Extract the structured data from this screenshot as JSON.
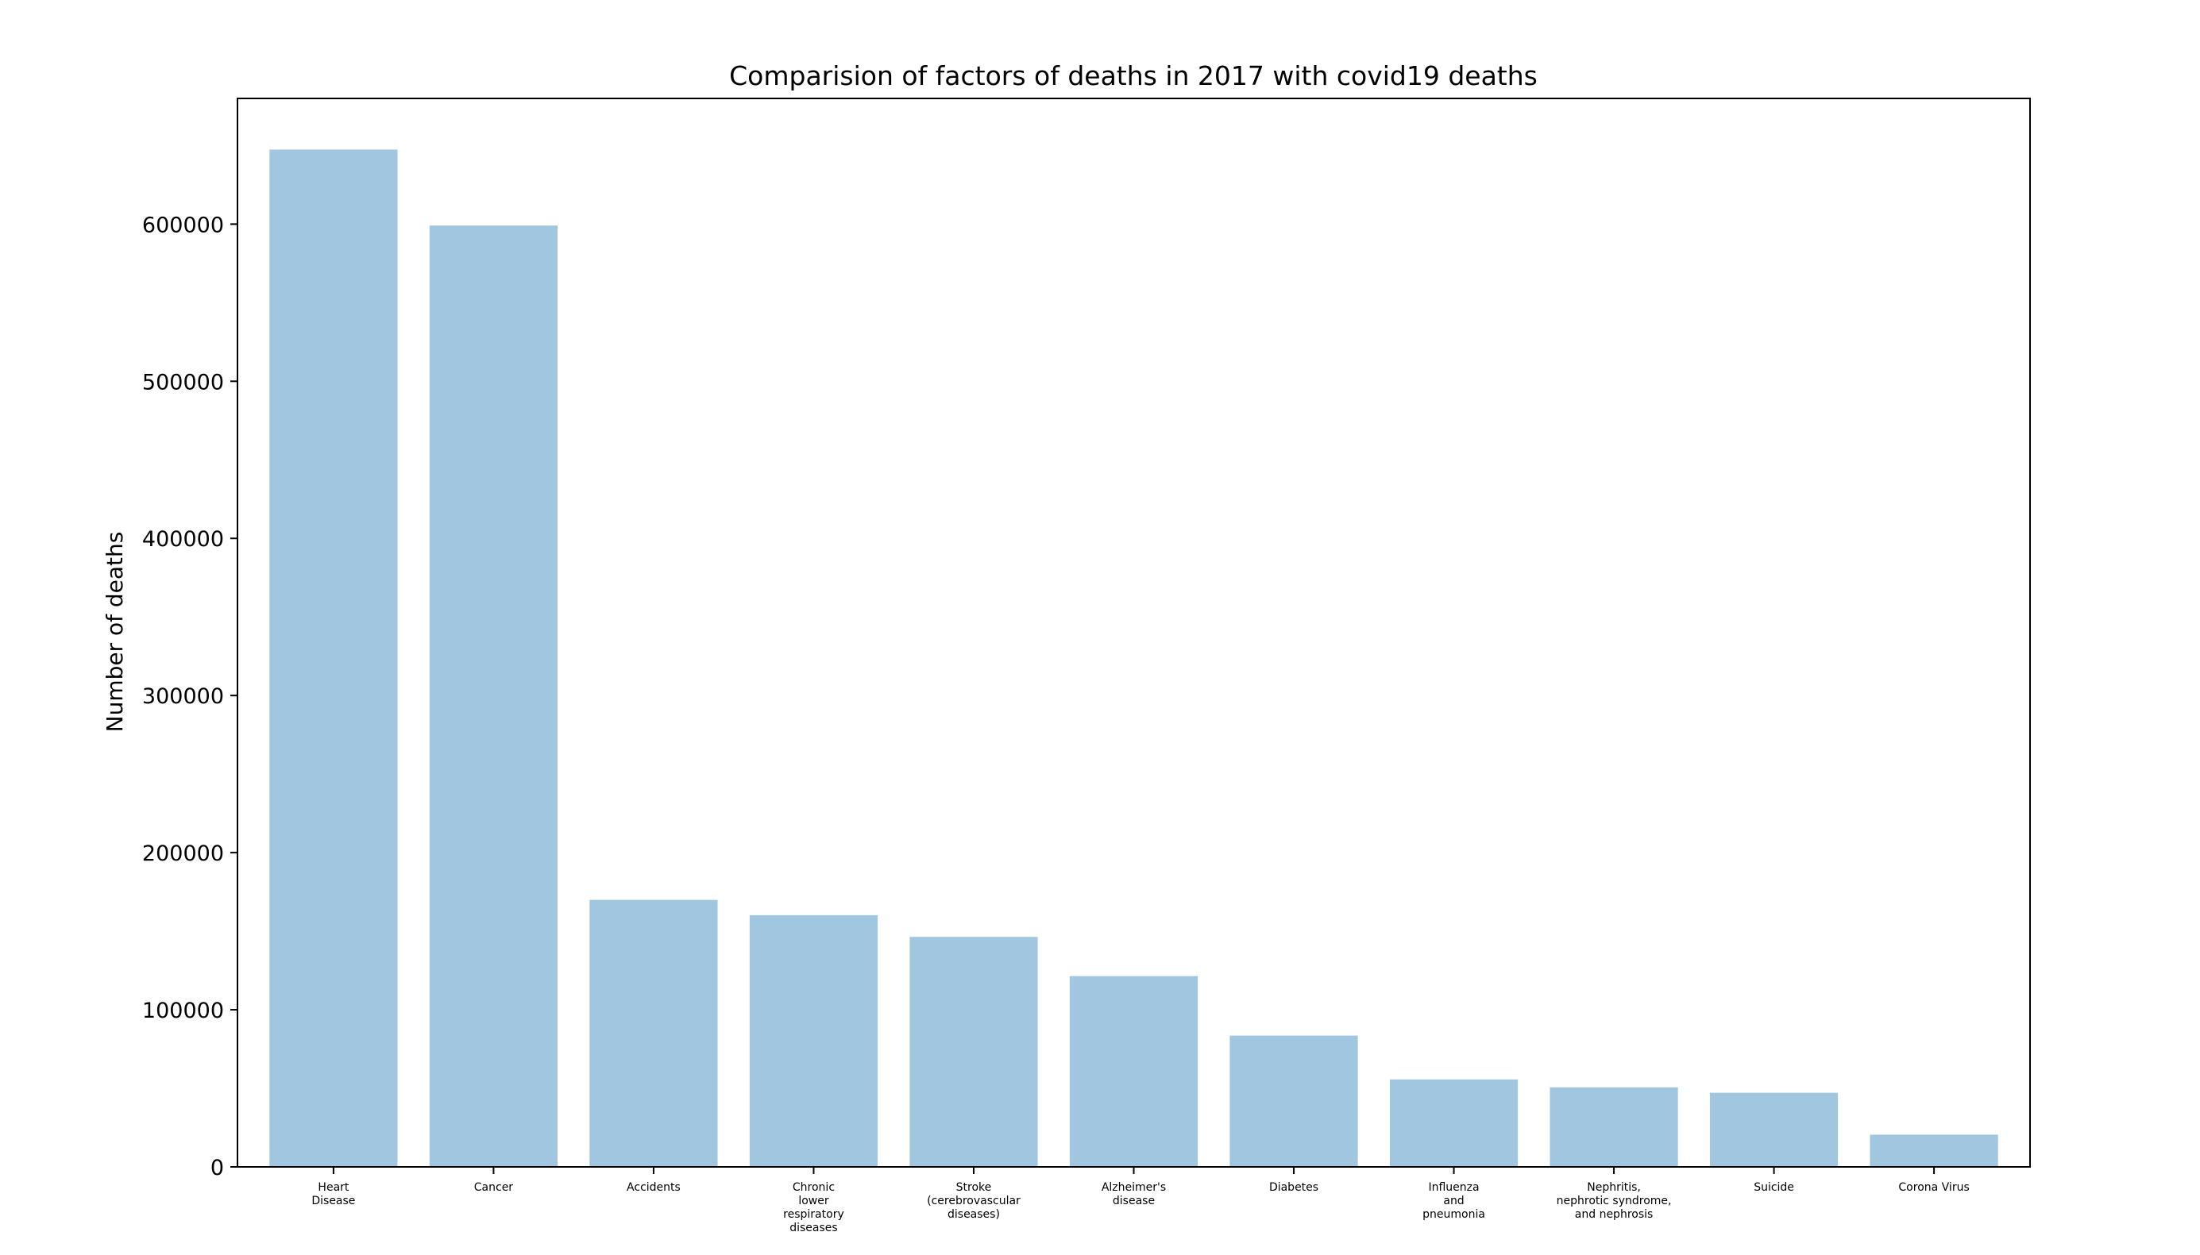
{
  "chart_data": {
    "type": "bar",
    "title": "Comparision of factors of deaths in 2017 with covid19 deaths",
    "xlabel": "",
    "ylabel": "Number of deaths",
    "ylim": [
      0,
      680000
    ],
    "yticks": [
      0,
      100000,
      200000,
      300000,
      400000,
      500000,
      600000
    ],
    "ytick_labels": [
      "0",
      "100000",
      "200000",
      "300000",
      "400000",
      "500000",
      "600000"
    ],
    "categories": [
      "Heart\nDisease",
      "Cancer",
      "Accidents",
      "Chronic\nlower\nrespiratory\ndiseases",
      "Stroke\n(cerebrovascular\ndiseases)",
      "Alzheimer's\ndisease",
      "Diabetes",
      "Influenza\nand\npneumonia",
      "Nephritis,\nnephrotic syndrome,\nand nephrosis",
      "Suicide",
      "Corona Virus"
    ],
    "values": [
      647457,
      599108,
      169936,
      160201,
      146383,
      121404,
      83564,
      55672,
      50633,
      47173,
      20500
    ],
    "bar_color": "#a1c6e0",
    "grid": false,
    "legend": "none"
  }
}
